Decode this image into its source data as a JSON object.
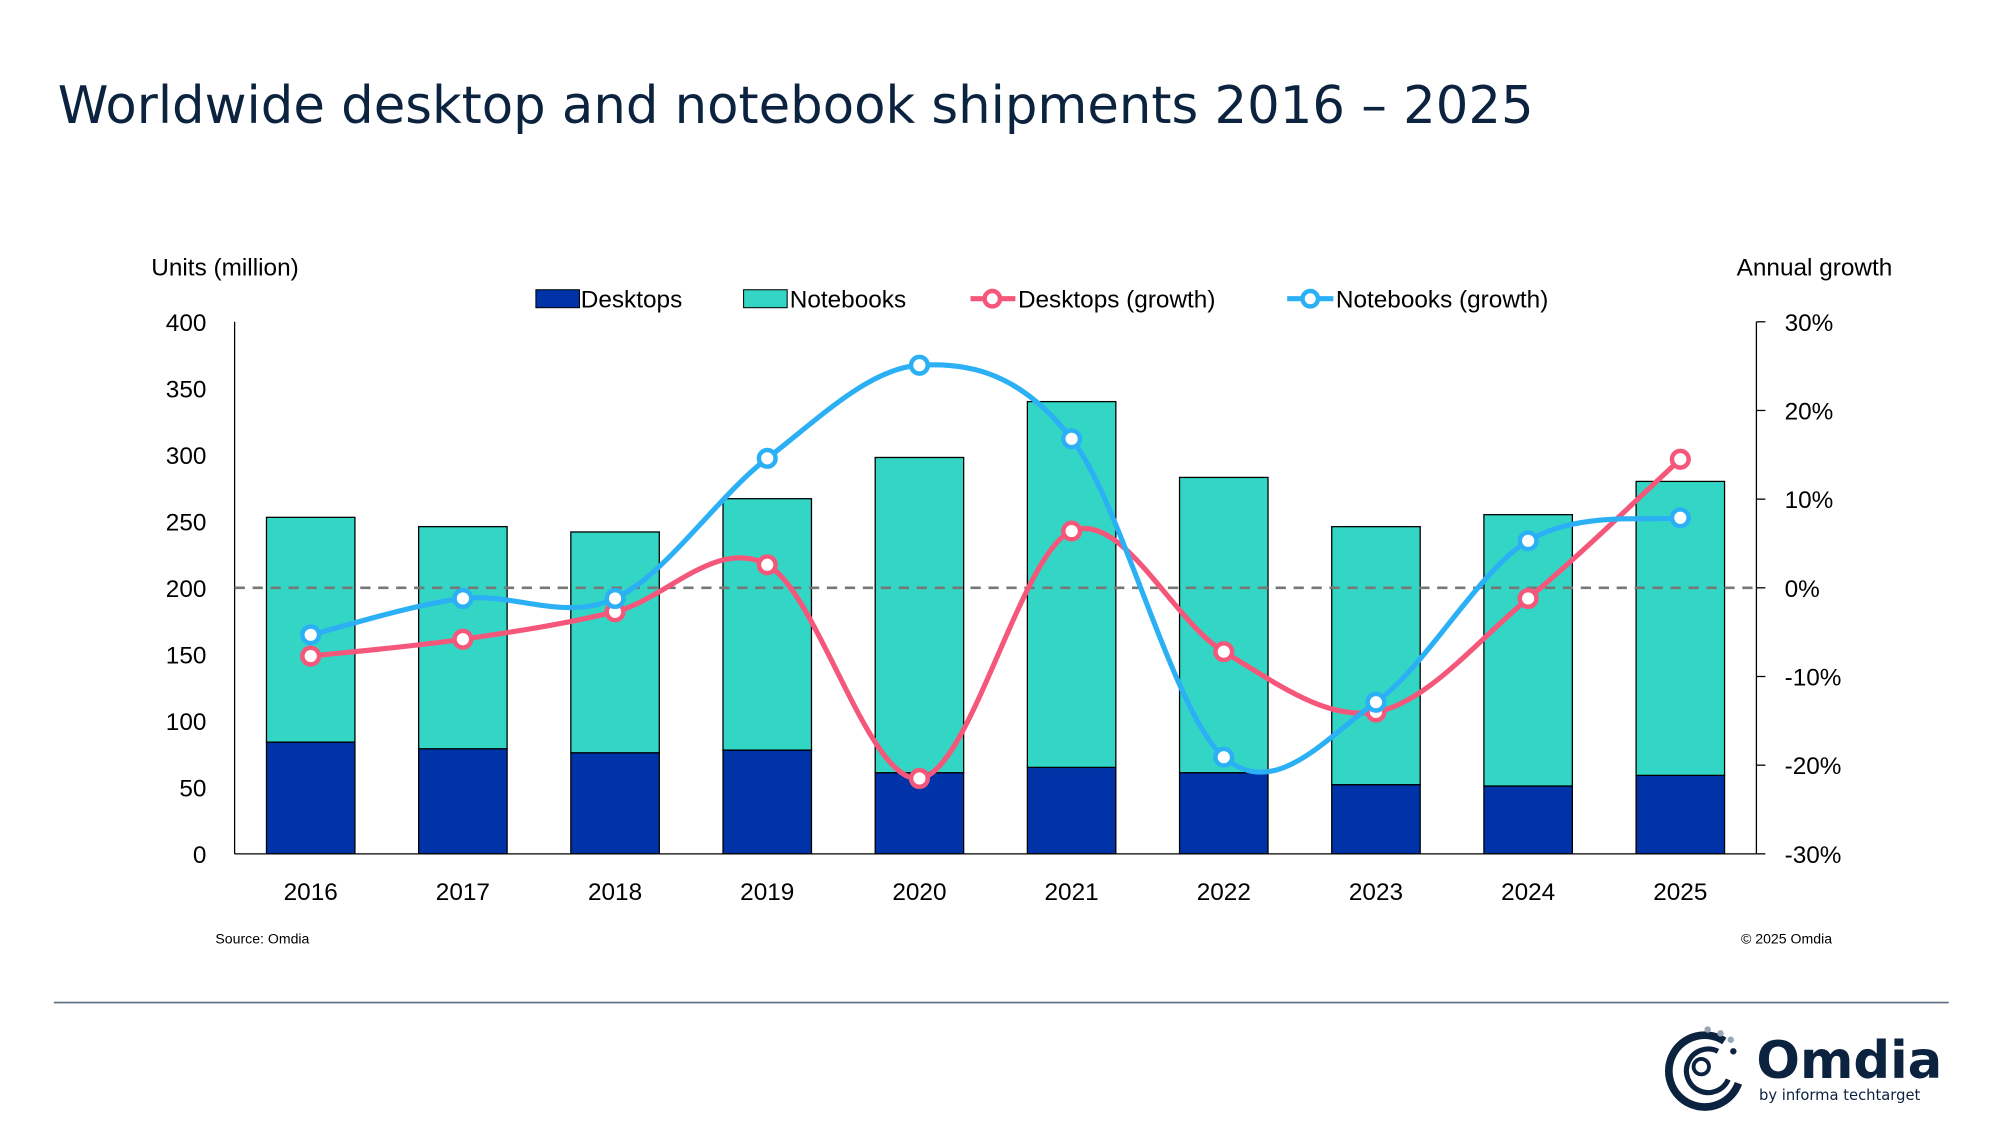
{
  "title": "Worldwide desktop and notebook shipments 2016 – 2025",
  "source": "Source: Omdia",
  "copyright": "© 2025 Omdia",
  "logo": {
    "name": "Omdia",
    "tagline": "by informa techtarget"
  },
  "colors": {
    "desktops": "#0033a8",
    "notebooks": "#33d6c4",
    "desktops_growth": "#f5577a",
    "notebooks_growth": "#2bb0f5",
    "title": "#0c2340"
  },
  "chart_data": {
    "type": "bar+line",
    "categories": [
      "2016",
      "2017",
      "2018",
      "2019",
      "2020",
      "2021",
      "2022",
      "2023",
      "2024",
      "2025"
    ],
    "ylabel": "Units (million)",
    "y2label": "Annual growth",
    "ylim": [
      0,
      400
    ],
    "y2lim": [
      -30,
      30
    ],
    "yticks": [
      "0",
      "50",
      "100",
      "150",
      "200",
      "250",
      "300",
      "350",
      "400"
    ],
    "y2ticks": [
      "-30%",
      "-20%",
      "-10%",
      "0%",
      "10%",
      "20%",
      "30%"
    ],
    "legend_position": "top",
    "series": [
      {
        "name": "Desktops",
        "kind": "stacked-bar",
        "values": [
          84,
          79,
          76,
          78,
          61,
          65,
          61,
          52,
          51,
          59
        ]
      },
      {
        "name": "Notebooks",
        "kind": "stacked-bar",
        "values": [
          169,
          167,
          166,
          189,
          237,
          275,
          222,
          194,
          204,
          221
        ]
      },
      {
        "name": "Desktops (growth)",
        "kind": "line",
        "axis": "right",
        "values": [
          -7.7,
          -5.8,
          -2.7,
          2.6,
          -21.5,
          6.4,
          -7.2,
          -14.0,
          -1.2,
          14.5
        ]
      },
      {
        "name": "Notebooks (growth)",
        "kind": "line",
        "axis": "right",
        "values": [
          -5.3,
          -1.2,
          -1.2,
          14.6,
          25.1,
          16.8,
          -19.1,
          -12.9,
          5.3,
          7.9
        ]
      }
    ]
  }
}
